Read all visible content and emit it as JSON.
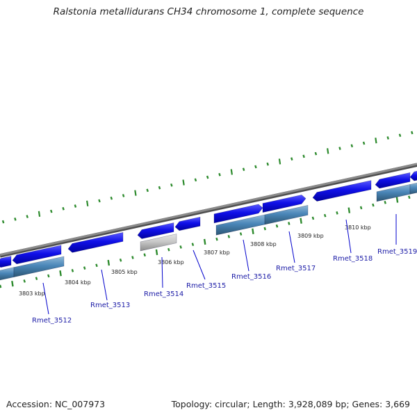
{
  "title": "Ralstonia metallidurans CH34 chromosome 1, complete sequence",
  "footer": {
    "accession": "Accession: NC_007973",
    "summary": "Topology: circular; Length: 3,928,089 bp; Genes: 3,669"
  },
  "colors": {
    "backbone": "#8a8a8a",
    "gene_fill": "#1010e8",
    "gene_top": "#5a5aff",
    "gene_bottom": "#0000a0",
    "cds_fill": "#4a86b8",
    "cds_top": "#8fb8d8",
    "cds_bottom": "#2c5674",
    "gray_feature": "#c8c8c8",
    "tick": "#2e8b2e",
    "label_line": "#0000cc",
    "label_text": "#1a1aa6"
  },
  "tick_labels": [
    "3803 kbp",
    "3804 kbp",
    "3805 kbp",
    "3806 kbp",
    "3807 kbp",
    "3808 kbp",
    "3809 kbp",
    "3810 kbp"
  ],
  "genes": [
    "Rmet_3512",
    "Rmet_3513",
    "Rmet_3514",
    "Rmet_3515",
    "Rmet_3516",
    "Rmet_3517",
    "Rmet_3518",
    "Rmet_3519"
  ]
}
